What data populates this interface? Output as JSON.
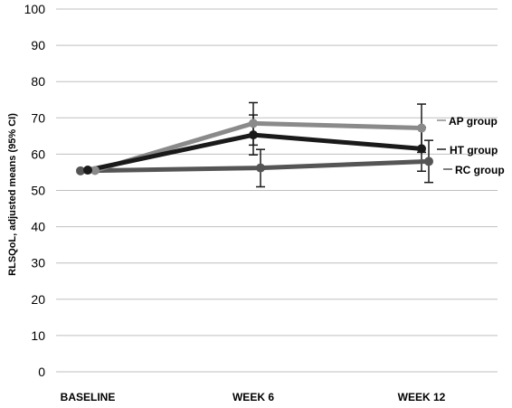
{
  "chart_data": {
    "type": "line",
    "categories": [
      "BASELINE",
      "WEEK 6",
      "WEEK 12"
    ],
    "ylabel": "RLSQoL, adjusted means (95% CI)",
    "xlabel": "",
    "title": "",
    "ylim": [
      0,
      100
    ],
    "yticks": [
      0,
      10,
      20,
      30,
      40,
      50,
      60,
      70,
      80,
      90,
      100
    ],
    "grid": true,
    "series": [
      {
        "name": "AP group",
        "color": "#8a8a8a",
        "values": [
          55.5,
          68.5,
          67.2
        ],
        "ci_low": [
          null,
          62.5,
          60.5
        ],
        "ci_high": [
          null,
          74.2,
          73.8
        ]
      },
      {
        "name": "HT group",
        "color": "#1a1a1a",
        "values": [
          55.6,
          65.3,
          61.5
        ],
        "ci_low": [
          null,
          59.8,
          55.3
        ],
        "ci_high": [
          null,
          70.8,
          67.4
        ]
      },
      {
        "name": "RC group",
        "color": "#555555",
        "values": [
          55.4,
          56.2,
          58.0
        ],
        "ci_low": [
          null,
          51.0,
          52.2
        ],
        "ci_high": [
          null,
          61.3,
          63.8
        ]
      }
    ]
  }
}
